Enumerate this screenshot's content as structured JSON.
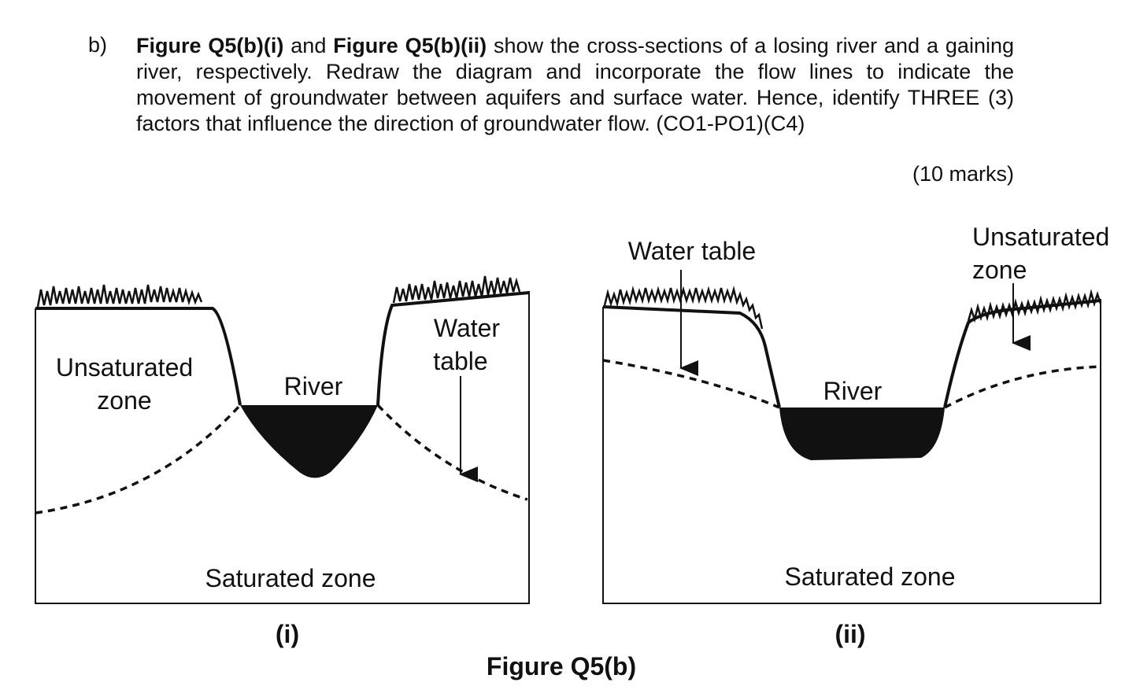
{
  "question": {
    "label": "b)",
    "text": [
      {
        "bold": true,
        "text": "Figure Q5(b)(i)"
      },
      {
        "bold": false,
        "text": " and "
      },
      {
        "bold": true,
        "text": "Figure Q5(b)(ii)"
      },
      {
        "bold": false,
        "text": " show the cross-sections of a losing river and a gaining river, respectively. Redraw the diagram and incorporate the flow lines to indicate the movement of groundwater between aquifers and surface water. Hence, identify THREE (3) factors that influence the direction of groundwater flow. (CO1-PO1)(C4)"
      }
    ],
    "marks": "(10 marks)"
  },
  "figure_i": {
    "unsaturated_zone": [
      "Unsaturated",
      "zone"
    ],
    "river": "River",
    "water_table": [
      "Water",
      "table"
    ],
    "saturated_zone": "Saturated zone",
    "label": "(i)"
  },
  "figure_ii": {
    "water_table": "Water table",
    "unsaturated_zone": [
      "Unsaturated",
      "zone"
    ],
    "river": "River",
    "saturated_zone": "Saturated zone",
    "label": "(ii)"
  },
  "caption": "Figure Q5(b)"
}
